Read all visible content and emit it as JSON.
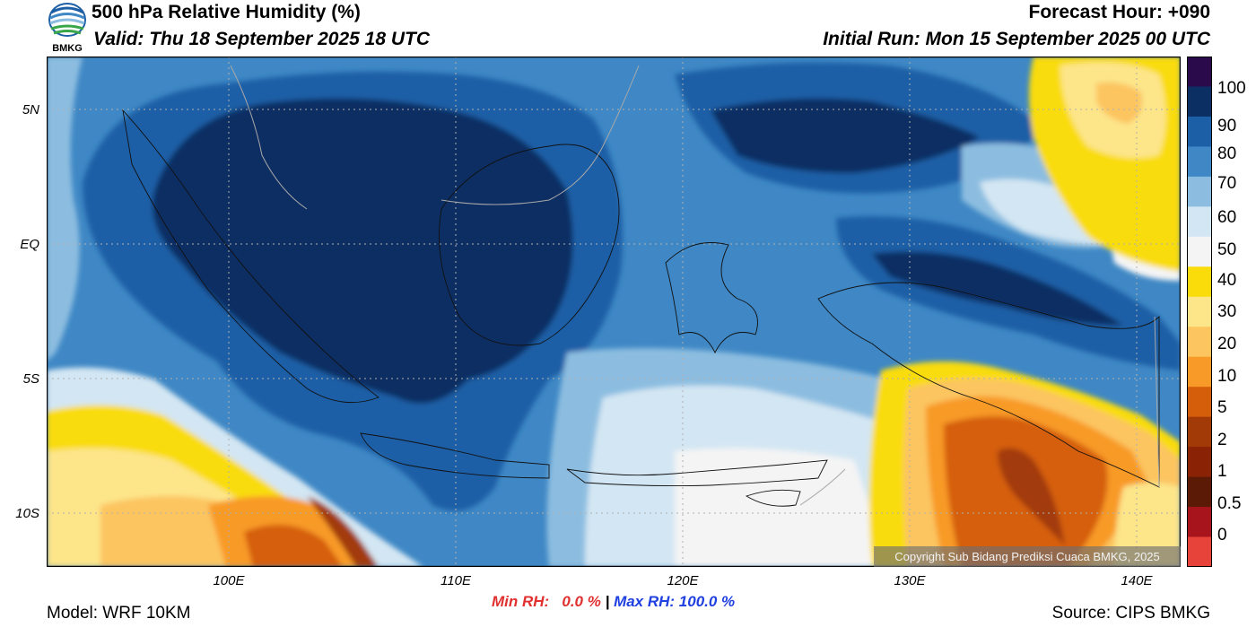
{
  "header": {
    "title": "500 hPa Relative Humidity (%)",
    "valid": "Valid: Thu 18 September 2025 18 UTC",
    "forecast_hour": "Forecast Hour: +090",
    "initial_run": "Initial Run: Mon 15 September 2025 00 UTC",
    "logo_text": "BMKG"
  },
  "map": {
    "lat_labels": [
      "5N",
      "EQ",
      "5S",
      "10S"
    ],
    "lon_labels": [
      "100E",
      "110E",
      "120E",
      "130E",
      "140E"
    ],
    "copyright": "Copyright Sub Bidang Prediksi Cuaca BMKG, 2025"
  },
  "colorbar": {
    "labels": [
      "100",
      "90",
      "80",
      "70",
      "60",
      "50",
      "40",
      "30",
      "20",
      "10",
      "5",
      "2",
      "1",
      "0.5",
      "0"
    ],
    "colors": [
      "#2a0a4a",
      "#0c2f63",
      "#1d5fa6",
      "#3f88c5",
      "#8cbde0",
      "#d3e6f3",
      "#f4f4f4",
      "#f9dc0a",
      "#fde58a",
      "#fcc560",
      "#f89a28",
      "#d55e0b",
      "#a23a08",
      "#8a2306",
      "#5a1a06",
      "#a8141b",
      "#e8433b"
    ]
  },
  "footer": {
    "model": "Model: WRF 10KM",
    "min_rh": "Min RH:   0.0 %",
    "separator": " | ",
    "max_rh": "Max RH: 100.0 %",
    "source": "Source: CIPS BMKG"
  }
}
